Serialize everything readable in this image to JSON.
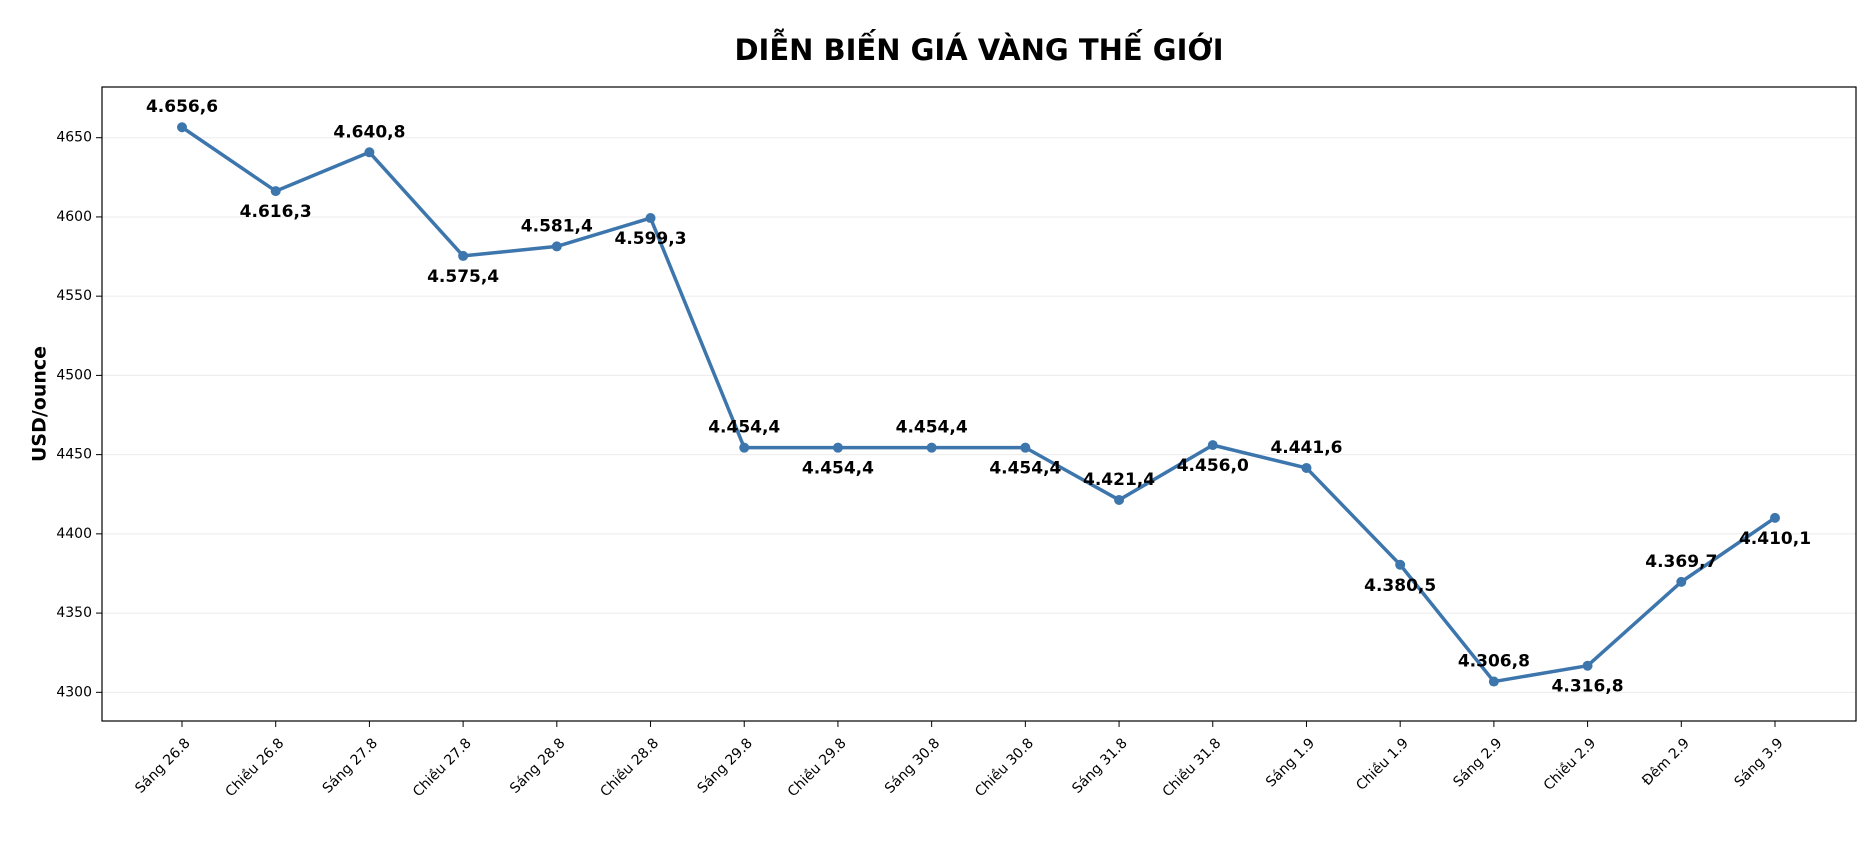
{
  "chart_data": {
    "type": "line",
    "title": "DIỄN BIẾN GIÁ VÀNG THẾ GIỚI",
    "y_label": "USD/ounce",
    "categories": [
      "Sáng 26.8",
      "Chiều 26.8",
      "Sáng 27.8",
      "Chiều 27.8",
      "Sáng 28.8",
      "Chiều 28.8",
      "Sáng 29.8",
      "Chiều 29.8",
      "Sáng 30.8",
      "Chiều 30.8",
      "Sáng 31.8",
      "Chiều 31.8",
      "Sáng 1.9",
      "Chiều 1.9",
      "Sáng 2.9",
      "Chiều 2.9",
      "Đêm 2.9",
      "Sáng 3.9"
    ],
    "values": [
      4656.6,
      4616.3,
      4640.8,
      4575.4,
      4581.4,
      4599.3,
      4454.4,
      4454.4,
      4454.4,
      4454.4,
      4421.4,
      4456.0,
      4441.6,
      4380.5,
      4306.8,
      4316.8,
      4369.7,
      4410.1
    ],
    "value_labels": [
      "4.656,6",
      "4.616,3",
      "4.640,8",
      "4.575,4",
      "4.581,4",
      "4.599,3",
      "4.454,4",
      "4.454,4",
      "4.454,4",
      "4.454,4",
      "4.421,4",
      "4.456,0",
      "4.441,6",
      "4.380,5",
      "4.306,8",
      "4.316,8",
      "4.369,7",
      "4.410,1"
    ],
    "color": "#3d76ad",
    "ylim": [
      4281.9,
      4682.0
    ],
    "yticks": [
      4300,
      4350,
      4400,
      4450,
      4500,
      4550,
      4600,
      4650
    ],
    "grid": true
  }
}
